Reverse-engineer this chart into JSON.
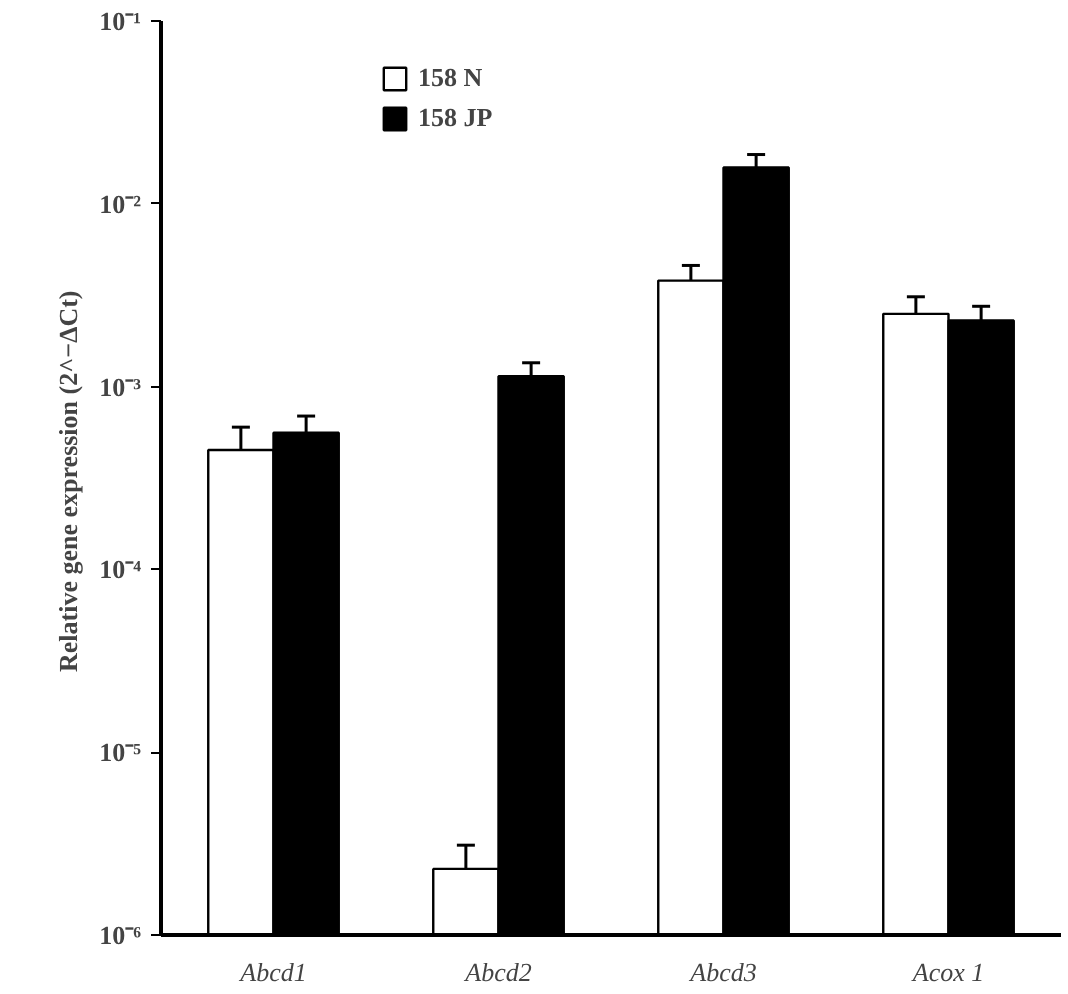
{
  "chart_data": {
    "type": "bar",
    "ylabel": "Relative gene expression  (2^−ΔCt)",
    "categories": [
      "Abcd1",
      "Abcd2",
      "Abcd3",
      "Acox 1"
    ],
    "series": [
      {
        "name": "158 N",
        "color": "#ffffff",
        "values": [
          0.00045,
          2.3e-06,
          0.0038,
          0.0025
        ],
        "errors": [
          [
            0.00045,
            0.0006
          ],
          [
            2.3e-06,
            3.1e-06
          ],
          [
            0.0038,
            0.0046
          ],
          [
            0.0025,
            0.0031
          ]
        ]
      },
      {
        "name": "158 JP",
        "color": "#000000",
        "values": [
          0.00056,
          0.00114,
          0.0158,
          0.0023
        ],
        "errors": [
          [
            0.00056,
            0.00069
          ],
          [
            0.00114,
            0.00135
          ],
          [
            0.0158,
            0.0186
          ],
          [
            0.0023,
            0.00275
          ]
        ]
      }
    ],
    "log": true,
    "ylim": [
      1e-06,
      0.1
    ],
    "yticks": [
      {
        "value": 1e-06,
        "label": "10⁻⁶"
      },
      {
        "value": 1e-05,
        "label": "10⁻⁵"
      },
      {
        "value": 0.0001,
        "label": "10⁻⁴"
      },
      {
        "value": 0.001,
        "label": "10⁻³"
      },
      {
        "value": 0.01,
        "label": "10⁻²"
      },
      {
        "value": 0.1,
        "label": "10⁻¹"
      }
    ],
    "grid": false,
    "legend": "top"
  }
}
